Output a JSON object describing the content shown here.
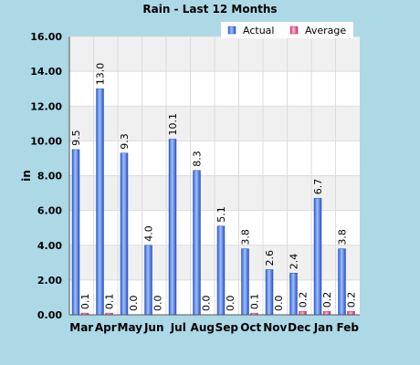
{
  "chart_data": {
    "type": "bar",
    "title": "Rain - Last 12 Months",
    "ylabel": "in",
    "xlabel": "",
    "ylim": [
      0,
      16
    ],
    "yticks": [
      "0.00",
      "2.00",
      "4.00",
      "6.00",
      "8.00",
      "10.00",
      "12.00",
      "14.00",
      "16.00"
    ],
    "categories": [
      "Mar",
      "Apr",
      "May",
      "Jun",
      "Jul",
      "Aug",
      "Sep",
      "Oct",
      "Nov",
      "Dec",
      "Jan",
      "Feb"
    ],
    "series": [
      {
        "name": "Actual",
        "color": "#4a7fe0",
        "values": [
          9.5,
          13.0,
          9.3,
          4.0,
          10.1,
          8.3,
          5.1,
          3.8,
          2.6,
          2.4,
          6.7,
          3.8
        ],
        "labels": [
          "9.5",
          "13.0",
          "9.3",
          "4.0",
          "10.1",
          "8.3",
          "5.1",
          "3.8",
          "2.6",
          "2.4",
          "6.7",
          "3.8"
        ]
      },
      {
        "name": "Average",
        "color": "#e0609a",
        "values": [
          0.1,
          0.1,
          0.0,
          0.0,
          null,
          0.0,
          0.0,
          0.1,
          0.0,
          0.2,
          0.2,
          0.2
        ],
        "labels": [
          "0.1",
          "0.1",
          "0.0",
          "0.0",
          "",
          "0.0",
          "0.0",
          "0.1",
          "0.0",
          "0.2",
          "0.2",
          "0.2"
        ]
      }
    ],
    "grid": true,
    "legend": "top-right"
  }
}
